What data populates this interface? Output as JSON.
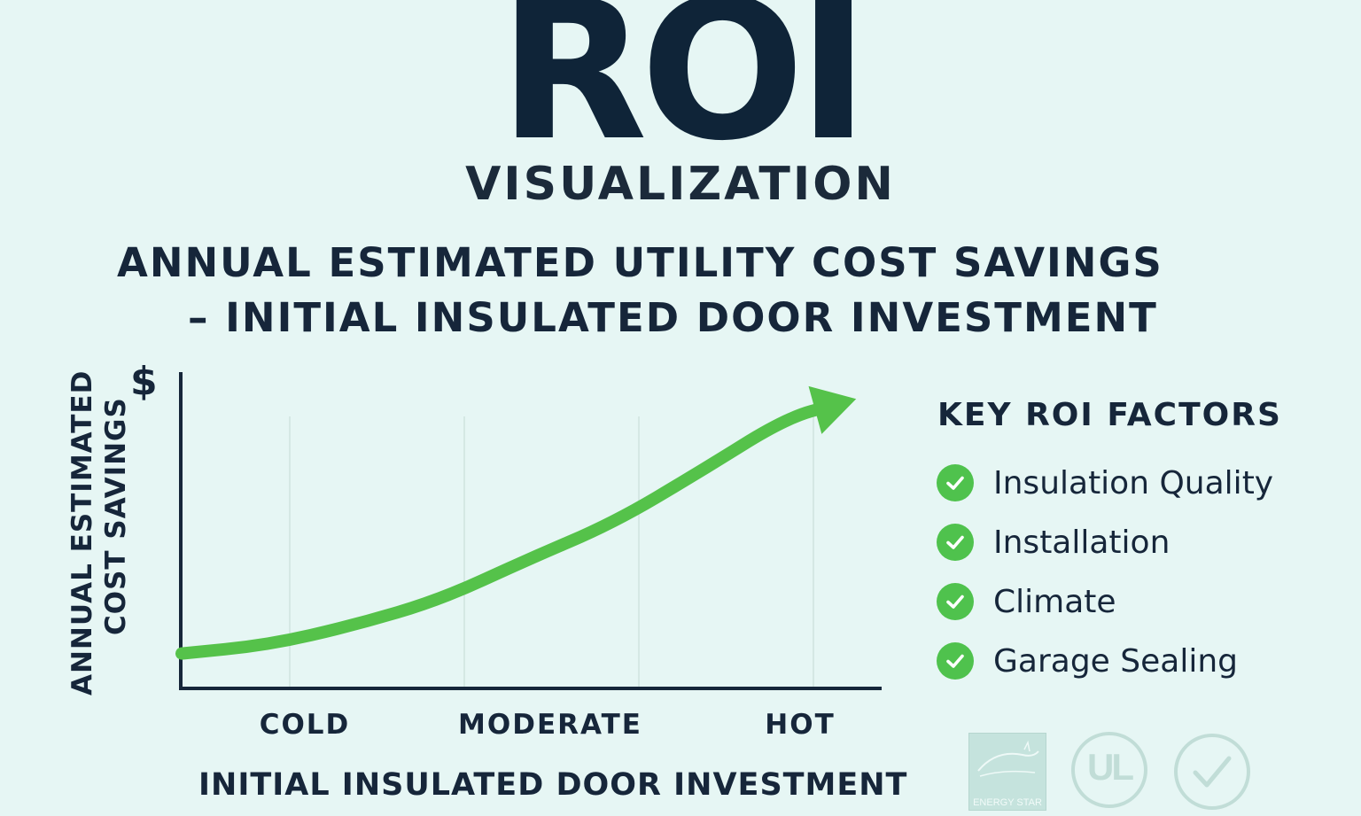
{
  "header": {
    "title": "ROI",
    "subtitle": "VISUALIZATION"
  },
  "chart_data": {
    "type": "line",
    "title_line1": "ANNUAL ESTIMATED UTILITY COST SAVINGS",
    "title_line2": "–  INITIAL INSULATED DOOR INVESTMENT",
    "ylabel_line1": "ANNUAL ESTIMATED",
    "ylabel_line2": "COST SAVINGS",
    "y_unit_symbol": "$",
    "xlabel": "INITIAL INSULATED DOOR INVESTMENT",
    "categories": [
      "COLD",
      "MODERATE",
      "HOT"
    ],
    "x": [
      0,
      0.5,
      1,
      1.5,
      2,
      2.5,
      3,
      3.5,
      3.8
    ],
    "values": [
      0.12,
      0.15,
      0.22,
      0.31,
      0.45,
      0.58,
      0.76,
      0.95,
      1.0
    ],
    "ylim": [
      0,
      1.05
    ],
    "grid": true,
    "legend": "none",
    "line_color": "#55c24a",
    "axis_color": "#16263a"
  },
  "factors": {
    "heading": "KEY ROI FACTORS",
    "items": [
      {
        "label": "Insulation Quality",
        "icon": "check-circle-icon"
      },
      {
        "label": "Installation",
        "icon": "check-circle-icon"
      },
      {
        "label": "Climate",
        "icon": "check-circle-icon"
      },
      {
        "label": "Garage Sealing",
        "icon": "check-circle-icon"
      }
    ],
    "check_color": "#4fc24d"
  },
  "badges": {
    "energy_star": "ENERGY STAR",
    "ul": "UL"
  }
}
